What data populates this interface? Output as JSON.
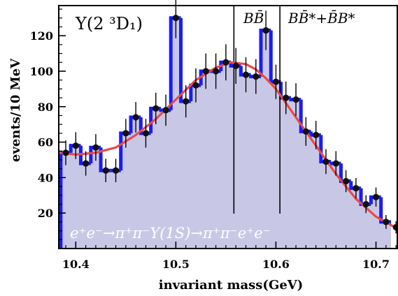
{
  "chart_data": {
    "type": "bar",
    "title": "Υ(2 ³D₁)",
    "xlabel": "invariant mass(GeV)",
    "ylabel": "events/10 MeV",
    "xlim": [
      10.383,
      10.722
    ],
    "ylim": [
      0,
      137
    ],
    "x_ticks": [
      10.4,
      10.5,
      10.6,
      10.7
    ],
    "x_tick_labels": [
      "10.4",
      "10.5",
      "10.6",
      "10.7"
    ],
    "y_ticks": [
      20,
      40,
      60,
      80,
      100,
      120
    ],
    "y_tick_labels": [
      "20",
      "40",
      "60",
      "80",
      "100",
      "120"
    ],
    "bin_width": 0.01,
    "series": [
      {
        "kind": "histogram",
        "color": "#1a1aff",
        "fill": "#c8c8e6",
        "x": [
          10.39,
          10.4,
          10.41,
          10.42,
          10.43,
          10.44,
          10.45,
          10.46,
          10.47,
          10.48,
          10.49,
          10.5,
          10.51,
          10.52,
          10.53,
          10.54,
          10.55,
          10.56,
          10.57,
          10.58,
          10.59,
          10.6,
          10.61,
          10.62,
          10.63,
          10.64,
          10.65,
          10.66,
          10.67,
          10.68,
          10.69,
          10.7,
          10.71
        ],
        "values": [
          54,
          58,
          48,
          57,
          44,
          44,
          65,
          74,
          65,
          79,
          78,
          130,
          83,
          92,
          100,
          100,
          105,
          103,
          98,
          97,
          123,
          94,
          85,
          84,
          66,
          64,
          49,
          48,
          38,
          34,
          25,
          29,
          15
        ]
      },
      {
        "kind": "points",
        "color": "#000000",
        "x": [
          10.39,
          10.4,
          10.41,
          10.42,
          10.43,
          10.44,
          10.45,
          10.46,
          10.47,
          10.48,
          10.49,
          10.5,
          10.51,
          10.52,
          10.53,
          10.54,
          10.55,
          10.56,
          10.57,
          10.58,
          10.59,
          10.6,
          10.61,
          10.62,
          10.63,
          10.64,
          10.65,
          10.66,
          10.67,
          10.68,
          10.69,
          10.7,
          10.71,
          10.72
        ],
        "values": [
          54,
          58,
          48,
          57,
          44,
          44,
          65,
          74,
          65,
          79,
          78,
          130,
          83,
          92,
          100,
          100,
          105,
          103,
          98,
          97,
          123,
          94,
          85,
          84,
          66,
          64,
          49,
          48,
          38,
          34,
          25,
          29,
          15,
          12
        ],
        "errors": [
          7,
          7.6,
          6.9,
          7.5,
          6.6,
          6.6,
          8.1,
          8.6,
          8.1,
          8.9,
          8.8,
          11.4,
          9.1,
          9.6,
          10,
          10,
          10.2,
          10.1,
          9.9,
          9.8,
          11.1,
          9.7,
          9.2,
          9.2,
          8.1,
          8,
          7,
          6.9,
          6.2,
          5.8,
          5,
          5.4,
          3.9,
          3.5
        ]
      },
      {
        "kind": "curve",
        "color": "#e84a4a",
        "x": [
          10.383,
          10.4,
          10.42,
          10.44,
          10.46,
          10.48,
          10.5,
          10.52,
          10.54,
          10.555,
          10.57,
          10.58,
          10.59,
          10.6,
          10.61,
          10.62,
          10.64,
          10.66,
          10.68,
          10.7,
          10.722
        ],
        "values": [
          54,
          53,
          54,
          57,
          64,
          73,
          84,
          95,
          102,
          105,
          104,
          101,
          96,
          90,
          82,
          74,
          58,
          42,
          28,
          18,
          11
        ]
      }
    ],
    "vlines": [
      {
        "x": 10.558,
        "label": "BB̄"
      },
      {
        "x": 10.604,
        "label": "BB̄*+B̄B*"
      }
    ],
    "annotation": "e⁺e⁻→π⁺π⁻Υ(1S)→π⁺π⁻e⁺e⁻",
    "grid": false,
    "legend": "none"
  }
}
